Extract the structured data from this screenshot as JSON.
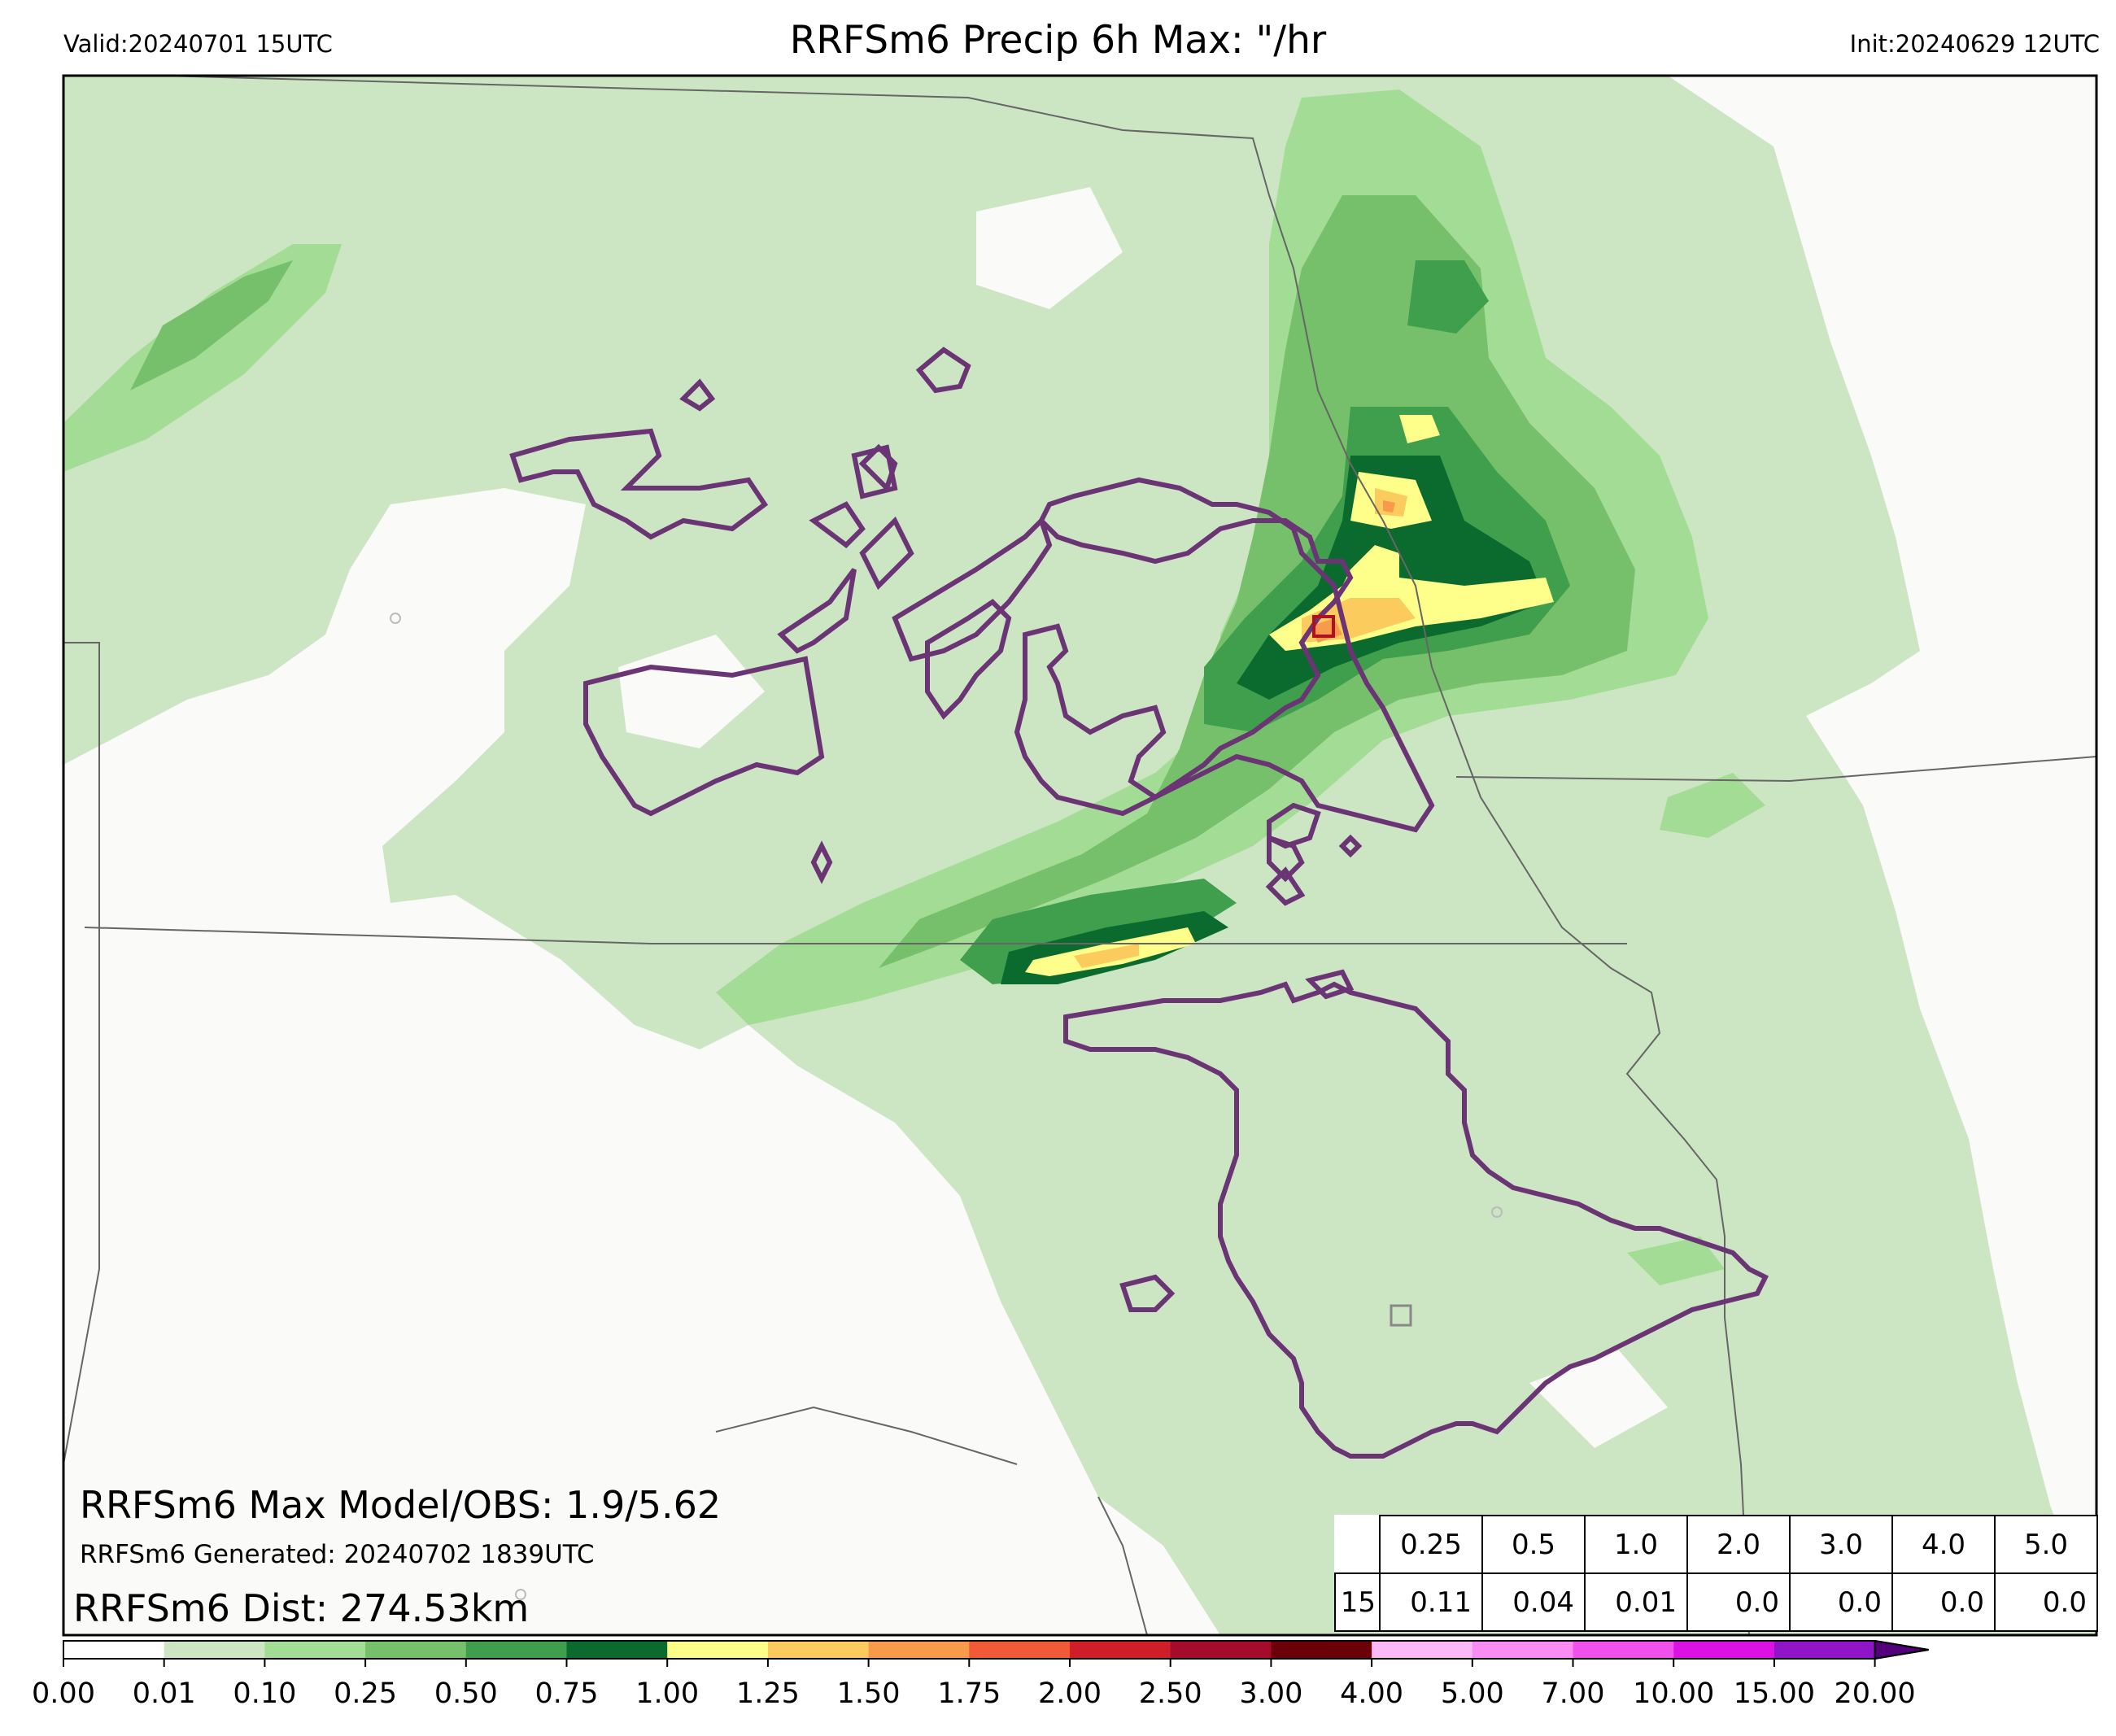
{
  "header": {
    "valid": "Valid:20240701 15UTC",
    "title": "RRFSm6 Precip 6h Max: \"/hr",
    "init": "Init:20240629 12UTC"
  },
  "stats": {
    "max_line": "RRFSm6 Max Model/OBS: 1.9/5.62",
    "generated_line": "RRFSm6 Generated: 20240702 1839UTC",
    "dist_line": "RRFSm6 Dist: 274.53km"
  },
  "table": {
    "thresholds": [
      "0.25",
      "0.5",
      "1.0",
      "2.0",
      "3.0",
      "4.0",
      "5.0"
    ],
    "row_label": "15",
    "values": [
      "0.11",
      "0.04",
      "0.01",
      "0.0",
      "0.0",
      "0.0",
      "0.0"
    ]
  },
  "colorbar": {
    "levels": [
      "0.00",
      "0.01",
      "0.10",
      "0.25",
      "0.50",
      "0.75",
      "1.00",
      "1.25",
      "1.50",
      "1.75",
      "2.00",
      "2.50",
      "3.00",
      "4.00",
      "5.00",
      "7.00",
      "10.00",
      "15.00",
      "20.00"
    ],
    "colors": [
      "#ffffff",
      "#cce6c4",
      "#a3dc94",
      "#76c06b",
      "#3f9f4d",
      "#0b6b2e",
      "#fefe8a",
      "#fbcb5e",
      "#f79a4b",
      "#f05a36",
      "#cf1e28",
      "#a50c2c",
      "#6b0008",
      "#fdb9f5",
      "#f98df1",
      "#f050ec",
      "#dc12e4",
      "#9014c8"
    ],
    "extend_color": "#54007a"
  },
  "chart_data": {
    "type": "heatmap",
    "title": "RRFSm6 Precip 6h Max: \"/hr",
    "variable": "6h max precipitation rate",
    "units": "\"/hr",
    "model_max": 1.9,
    "obs_max": 5.62,
    "distance_km": 274.53,
    "legend": "colorbar bottom",
    "exceedance_fractions": [
      {
        "threshold": 0.25,
        "value": 0.11
      },
      {
        "threshold": 0.5,
        "value": 0.04
      },
      {
        "threshold": 1.0,
        "value": 0.01
      },
      {
        "threshold": 2.0,
        "value": 0.0
      },
      {
        "threshold": 3.0,
        "value": 0.0
      },
      {
        "threshold": 4.0,
        "value": 0.0
      },
      {
        "threshold": 5.0,
        "value": 0.0
      }
    ]
  }
}
